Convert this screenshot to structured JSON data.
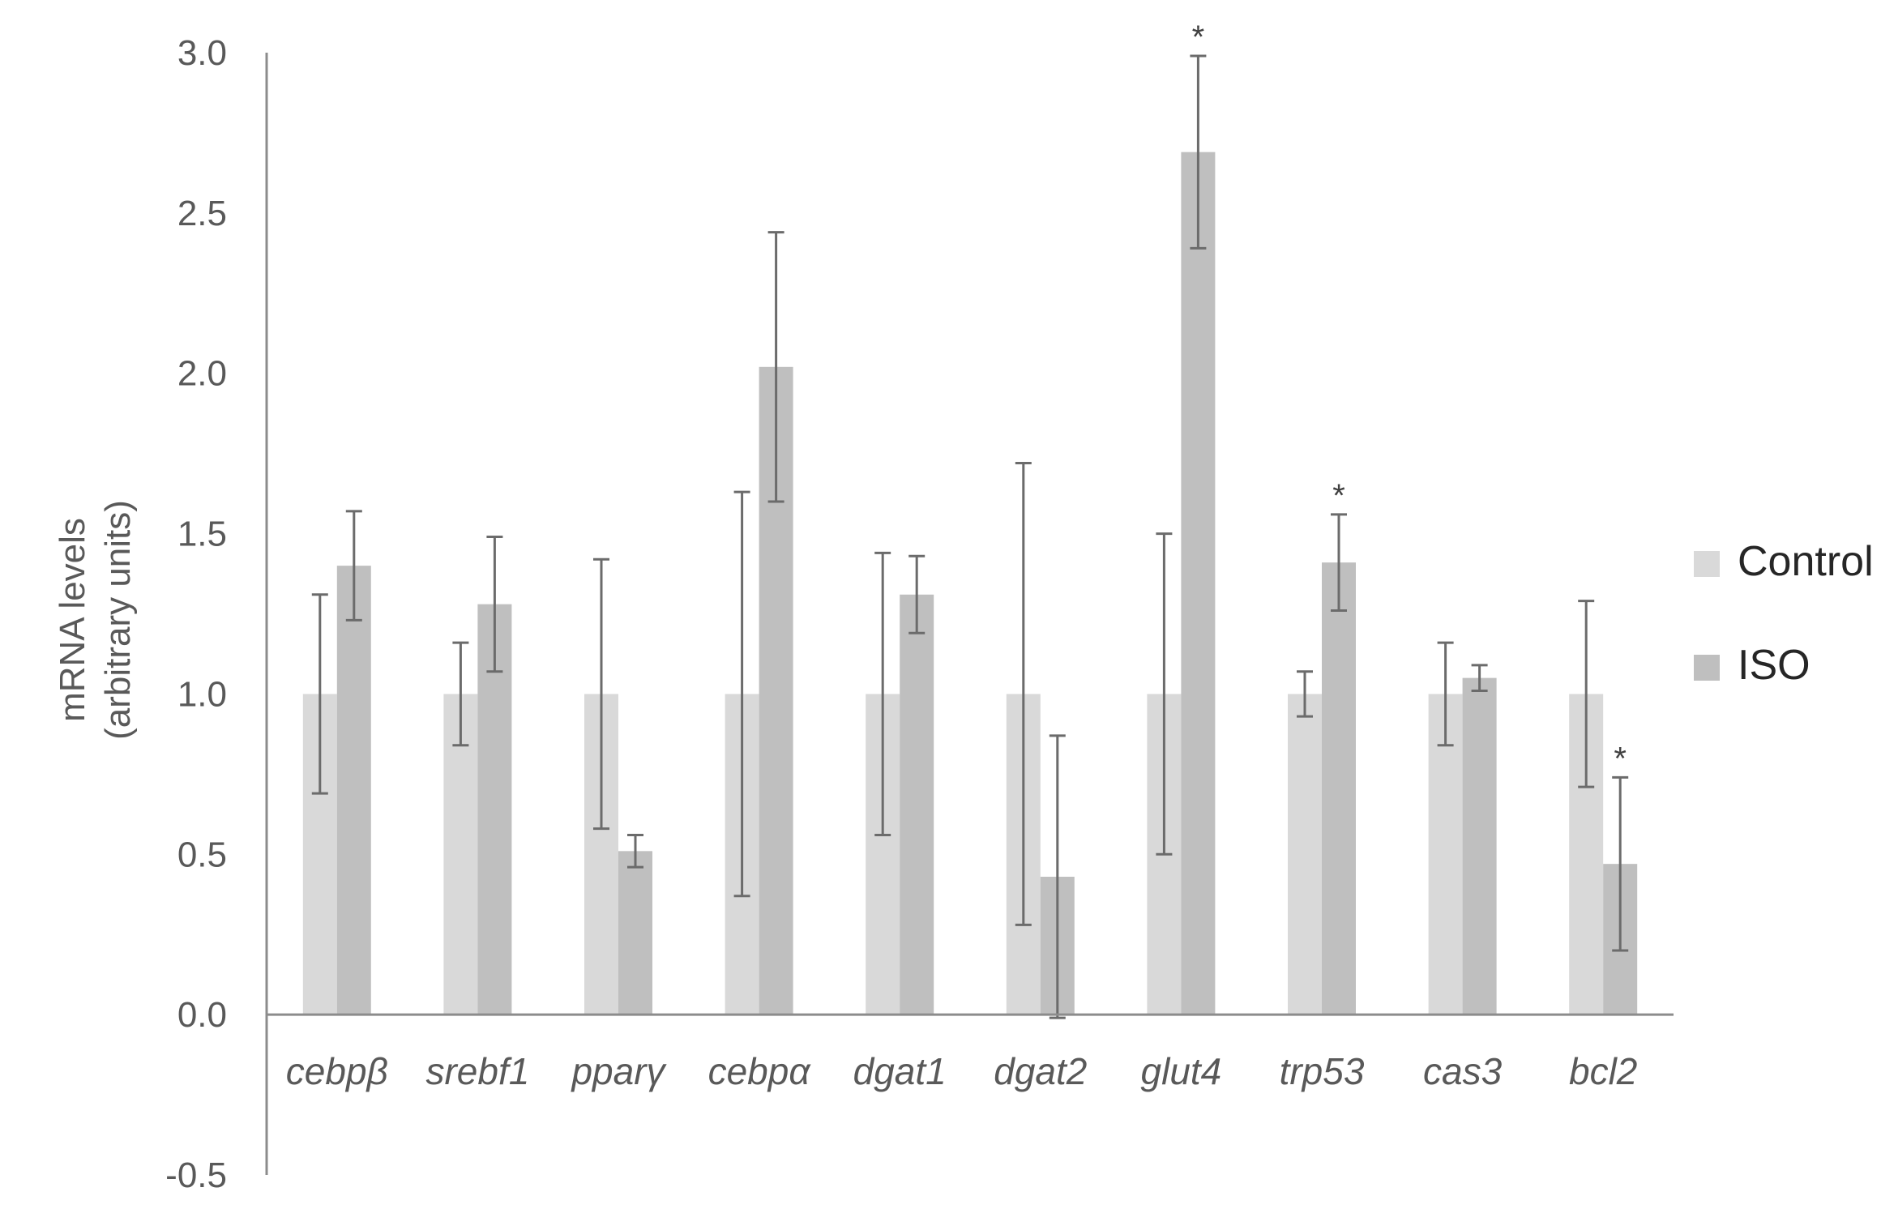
{
  "chart_data": {
    "type": "bar",
    "categories": [
      "cebpβ",
      "srebf1",
      "pparγ",
      "cebpα",
      "dgat1",
      "dgat2",
      "glut4",
      "trp53",
      "cas3",
      "bcl2"
    ],
    "series": [
      {
        "name": "Control",
        "color": "#d9d9d9",
        "values": [
          1.0,
          1.0,
          1.0,
          1.0,
          1.0,
          1.0,
          1.0,
          1.0,
          1.0,
          1.0
        ],
        "errors": [
          0.31,
          0.16,
          0.42,
          0.63,
          0.44,
          0.72,
          0.5,
          0.07,
          0.16,
          0.29
        ],
        "significance": [
          "",
          "",
          "",
          "",
          "",
          "",
          "",
          "",
          "",
          ""
        ]
      },
      {
        "name": "ISO",
        "color": "#bfbfbf",
        "values": [
          1.4,
          1.28,
          0.51,
          2.02,
          1.31,
          0.43,
          2.69,
          1.41,
          1.05,
          0.47
        ],
        "errors": [
          0.17,
          0.21,
          0.05,
          0.42,
          0.12,
          0.44,
          0.3,
          0.15,
          0.04,
          0.27
        ],
        "significance": [
          "",
          "",
          "",
          "",
          "",
          "",
          "*",
          "*",
          "",
          "*"
        ]
      }
    ],
    "y_ticks": [
      "3.0",
      "2.5",
      "2.0",
      "1.5",
      "1.0",
      "0.5",
      "0.0",
      "-0.5"
    ],
    "ylim": [
      -0.5,
      3.0
    ],
    "ylabel_line1": "mRNA levels",
    "ylabel_line2": "(arbitrary units)",
    "legend_position": "right",
    "grid": false
  }
}
